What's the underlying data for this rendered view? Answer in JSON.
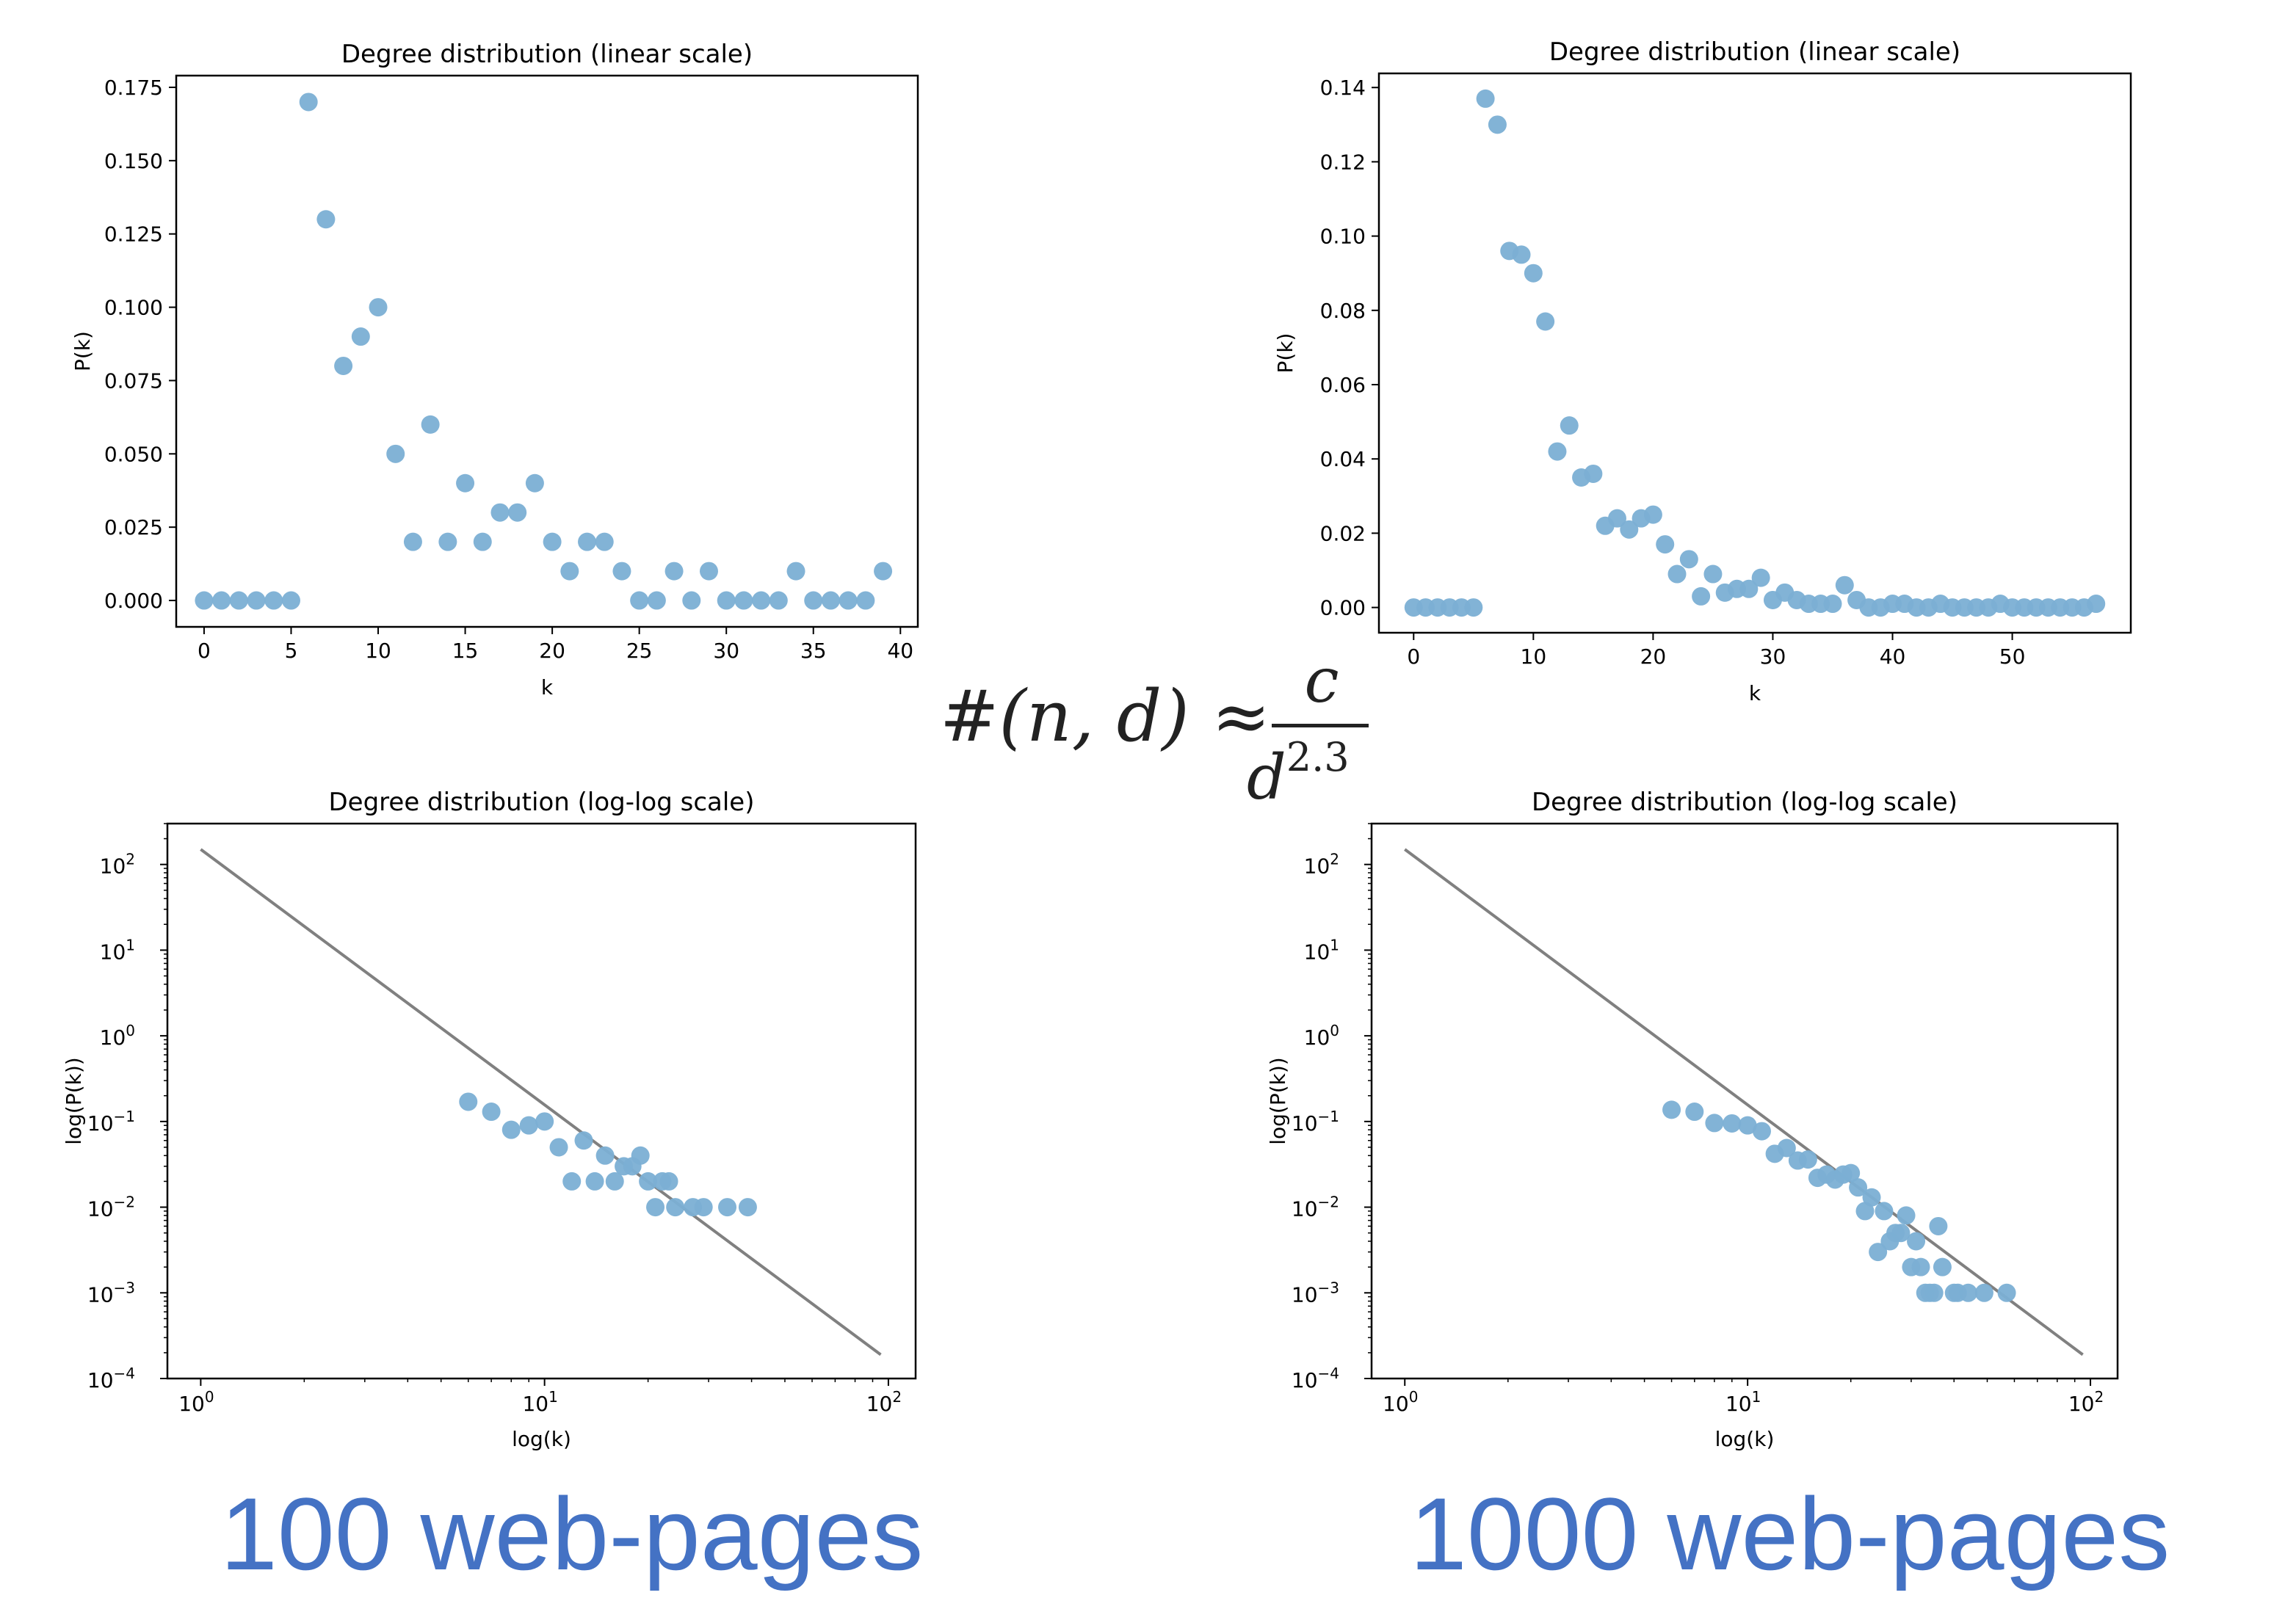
{
  "formula": {
    "lhs": "#(n, d) ≈",
    "numerator": "c",
    "denominator_base": "d",
    "denominator_exp": "2.3"
  },
  "captions": {
    "left": "100 web-pages",
    "right": "1000 web-pages"
  },
  "colors": {
    "points": "#7bafd4",
    "fit_line": "#808080",
    "caption": "#4472c4"
  },
  "chart_data": [
    {
      "id": "p100-linear",
      "type": "scatter",
      "title": "Degree distribution (linear scale)",
      "xlabel": "k",
      "ylabel": "P(k)",
      "xlim": [
        -1.6,
        41
      ],
      "ylim": [
        -0.009,
        0.179
      ],
      "xticks": [
        0,
        5,
        10,
        15,
        20,
        25,
        30,
        35,
        40
      ],
      "yticks": [
        0,
        0.025,
        0.05,
        0.075,
        0.1,
        0.125,
        0.15,
        0.175
      ],
      "ytick_labels": [
        "0.000",
        "0.025",
        "0.050",
        "0.075",
        "0.100",
        "0.125",
        "0.150",
        "0.175"
      ],
      "x": [
        0,
        1,
        2,
        3,
        4,
        5,
        6,
        7,
        8,
        9,
        10,
        11,
        12,
        13,
        14,
        15,
        16,
        17,
        18,
        19,
        20,
        21,
        22,
        23,
        24,
        25,
        26,
        27,
        28,
        29,
        30,
        31,
        32,
        33,
        34,
        35,
        36,
        37,
        38,
        39
      ],
      "y": [
        0,
        0,
        0,
        0,
        0,
        0,
        0.17,
        0.13,
        0.08,
        0.09,
        0.1,
        0.05,
        0.02,
        0.06,
        0.02,
        0.04,
        0.02,
        0.03,
        0.03,
        0.04,
        0.02,
        0.01,
        0.02,
        0.02,
        0.01,
        0,
        0,
        0.01,
        0,
        0.01,
        0,
        0,
        0,
        0,
        0.01,
        0,
        0,
        0,
        0,
        0.01
      ]
    },
    {
      "id": "p1000-linear",
      "type": "scatter",
      "title": "Degree distribution (linear scale)",
      "xlabel": "k",
      "ylabel": "P(k)",
      "xlim": [
        -2.9,
        59.9
      ],
      "ylim": [
        -0.0068,
        0.1438
      ],
      "xticks": [
        0,
        10,
        20,
        30,
        40,
        50
      ],
      "yticks": [
        0,
        0.02,
        0.04,
        0.06,
        0.08,
        0.1,
        0.12,
        0.14
      ],
      "ytick_labels": [
        "0.00",
        "0.02",
        "0.04",
        "0.06",
        "0.08",
        "0.10",
        "0.12",
        "0.14"
      ],
      "x": [
        0,
        1,
        2,
        3,
        4,
        5,
        6,
        7,
        8,
        9,
        10,
        11,
        12,
        13,
        14,
        15,
        16,
        17,
        18,
        19,
        20,
        21,
        22,
        23,
        24,
        25,
        26,
        27,
        28,
        29,
        30,
        31,
        32,
        33,
        34,
        35,
        36,
        37,
        38,
        39,
        40,
        41,
        42,
        43,
        44,
        45,
        46,
        47,
        48,
        49,
        50,
        51,
        52,
        53,
        54,
        55,
        56,
        57
      ],
      "y": [
        0,
        0,
        0,
        0,
        0,
        0,
        0.137,
        0.13,
        0.096,
        0.095,
        0.09,
        0.077,
        0.042,
        0.049,
        0.035,
        0.036,
        0.022,
        0.024,
        0.021,
        0.024,
        0.025,
        0.017,
        0.009,
        0.013,
        0.003,
        0.009,
        0.004,
        0.005,
        0.005,
        0.008,
        0.002,
        0.004,
        0.002,
        0.001,
        0.001,
        0.001,
        0.006,
        0.002,
        0,
        0,
        0.001,
        0.001,
        0,
        0,
        0.001,
        0,
        0,
        0,
        0,
        0.001,
        0,
        0,
        0,
        0,
        0,
        0,
        0,
        0.001
      ]
    },
    {
      "id": "p100-loglog",
      "type": "scatter",
      "title": "Degree distribution (log-log scale)",
      "xlabel": "log(k)",
      "ylabel": "log(P(k))",
      "xscale": "log",
      "yscale": "log",
      "xlim": [
        0.8,
        120
      ],
      "ylim": [
        0.0001,
        300
      ],
      "xticks": [
        1,
        10,
        100
      ],
      "xtick_exps": [
        "0",
        "1",
        "2"
      ],
      "yticks": [
        0.0001,
        0.001,
        0.01,
        0.1,
        1,
        10,
        100
      ],
      "ytick_exps": [
        "−4",
        "−3",
        "−2",
        "−1",
        "0",
        "1",
        "2"
      ],
      "x": [
        6,
        7,
        8,
        9,
        10,
        11,
        12,
        13,
        14,
        15,
        16,
        17,
        18,
        19,
        20,
        21,
        22,
        23,
        24,
        27,
        29,
        34,
        39
      ],
      "y": [
        0.17,
        0.13,
        0.08,
        0.09,
        0.1,
        0.05,
        0.02,
        0.06,
        0.02,
        0.04,
        0.02,
        0.03,
        0.03,
        0.04,
        0.02,
        0.01,
        0.02,
        0.02,
        0.01,
        0.01,
        0.01,
        0.01,
        0.01
      ],
      "fit_line": {
        "x": [
          1,
          95
        ],
        "y": [
          150,
          0.00019
        ]
      }
    },
    {
      "id": "p1000-loglog",
      "type": "scatter",
      "title": "Degree distribution (log-log scale)",
      "xlabel": "log(k)",
      "ylabel": "log(P(k))",
      "xscale": "log",
      "yscale": "log",
      "xlim": [
        0.8,
        120
      ],
      "ylim": [
        0.0001,
        300
      ],
      "xticks": [
        1,
        10,
        100
      ],
      "xtick_exps": [
        "0",
        "1",
        "2"
      ],
      "yticks": [
        0.0001,
        0.001,
        0.01,
        0.1,
        1,
        10,
        100
      ],
      "ytick_exps": [
        "−4",
        "−3",
        "−2",
        "−1",
        "0",
        "1",
        "2"
      ],
      "x": [
        6,
        7,
        8,
        9,
        10,
        11,
        12,
        13,
        14,
        15,
        16,
        17,
        18,
        19,
        20,
        21,
        22,
        23,
        24,
        25,
        26,
        27,
        28,
        29,
        30,
        31,
        32,
        33,
        34,
        35,
        36,
        37,
        40,
        41,
        44,
        49,
        57
      ],
      "y": [
        0.137,
        0.13,
        0.096,
        0.095,
        0.09,
        0.077,
        0.042,
        0.049,
        0.035,
        0.036,
        0.022,
        0.024,
        0.021,
        0.024,
        0.025,
        0.017,
        0.009,
        0.013,
        0.003,
        0.009,
        0.004,
        0.005,
        0.005,
        0.008,
        0.002,
        0.004,
        0.002,
        0.001,
        0.001,
        0.001,
        0.006,
        0.002,
        0.001,
        0.001,
        0.001,
        0.001,
        0.001
      ],
      "fit_line": {
        "x": [
          1,
          95
        ],
        "y": [
          150,
          0.00019
        ]
      }
    }
  ]
}
